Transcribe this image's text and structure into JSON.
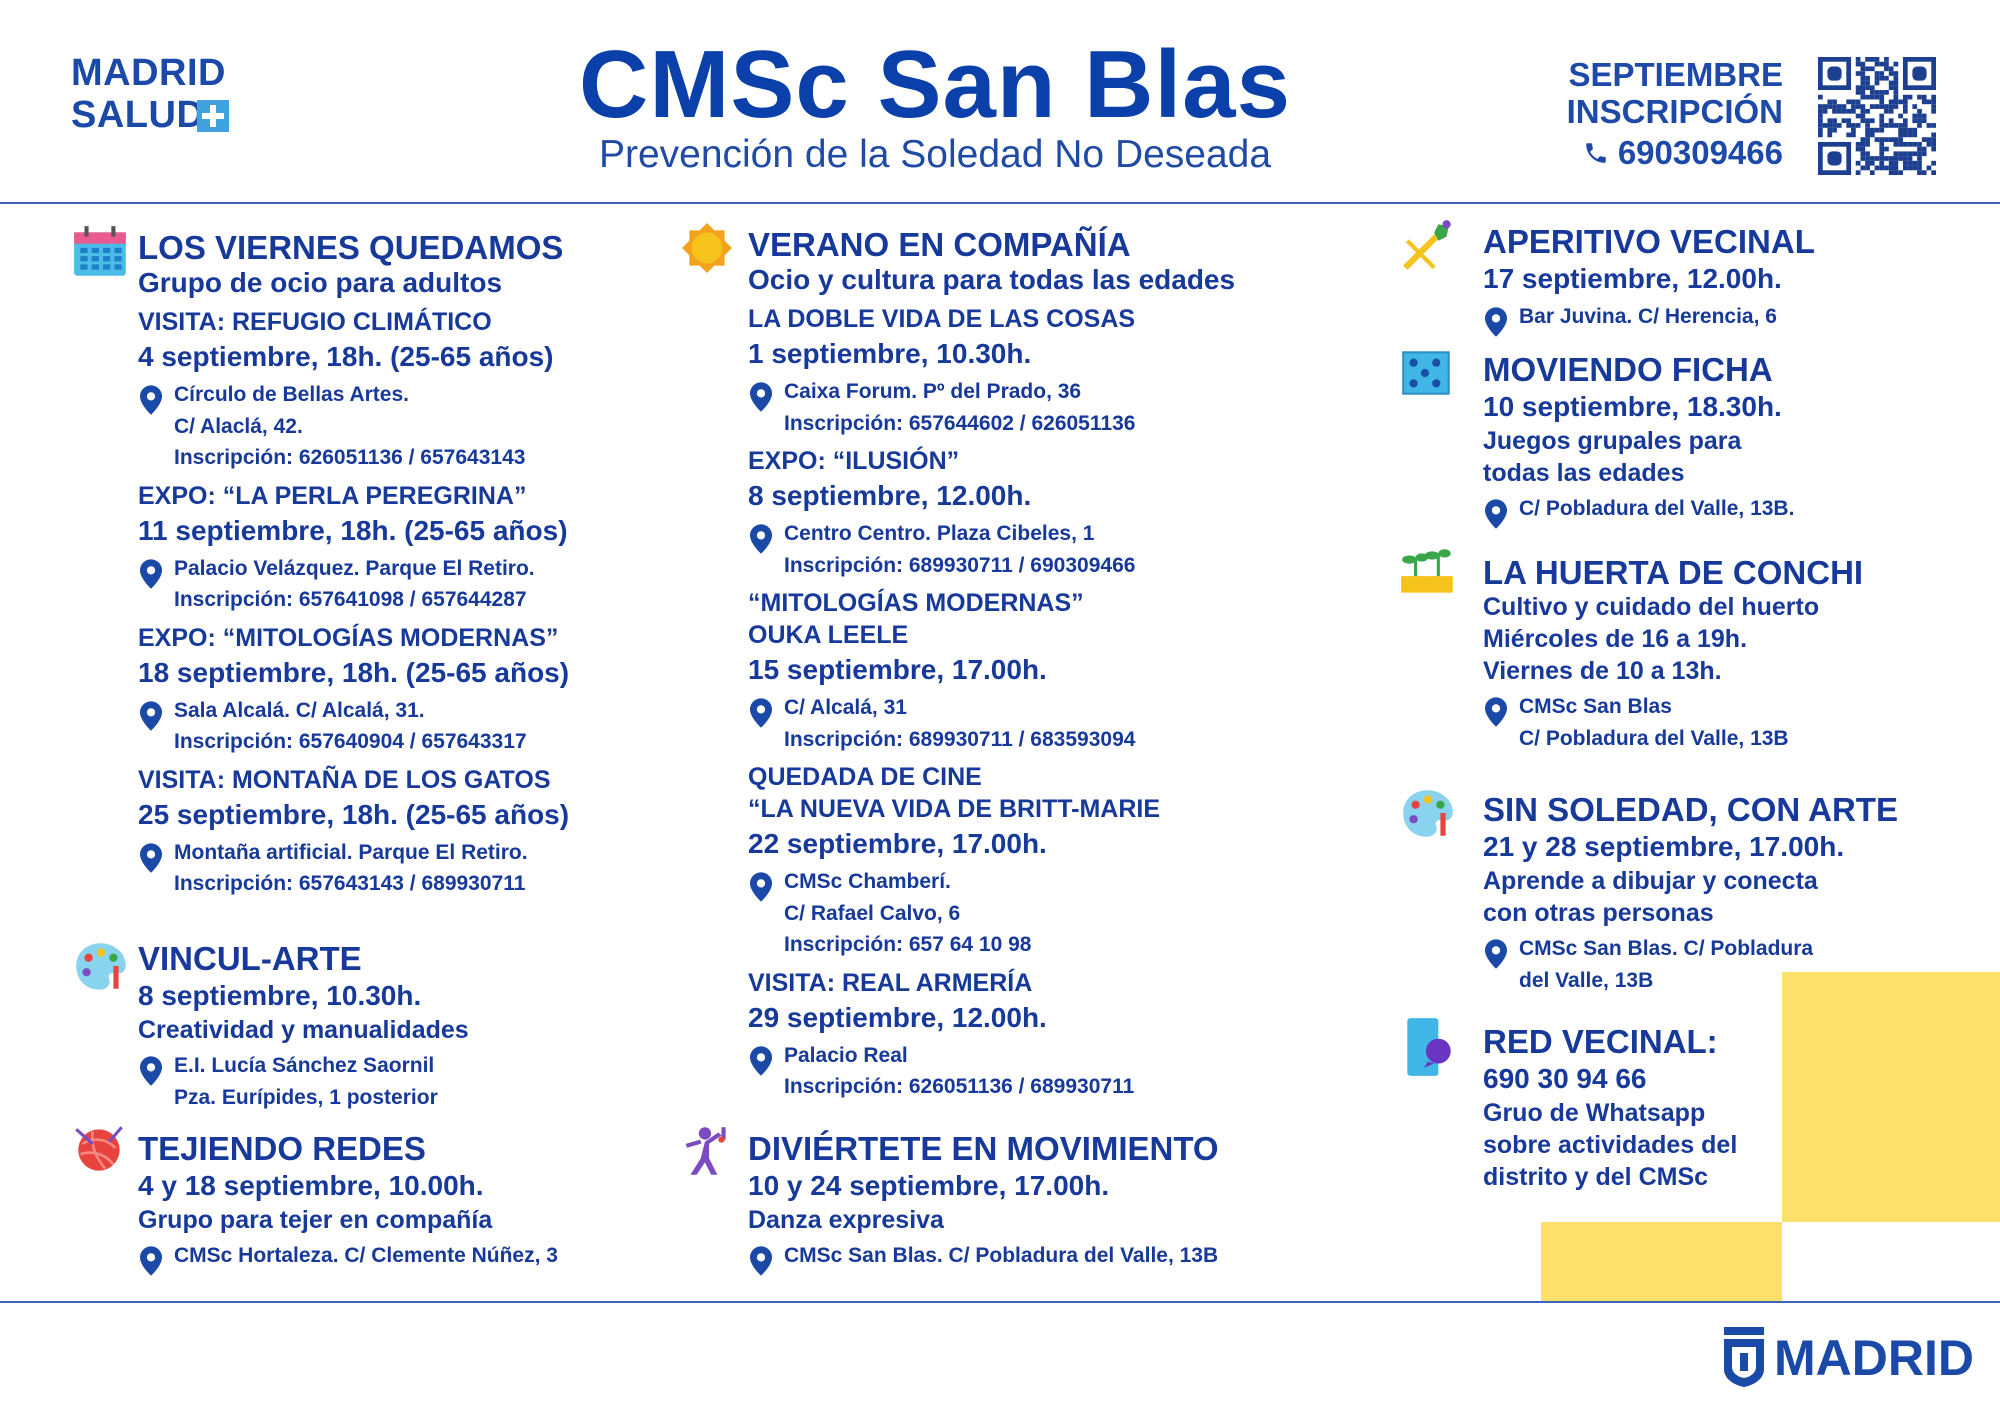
{
  "header": {
    "logo": [
      "MADRID",
      "SALUD"
    ],
    "title": "CMSc San Blas",
    "subtitle": "Prevención de la Soledad No Deseada",
    "month": "SEPTIEMBRE",
    "registration": "INSCRIPCIÓN",
    "phone": "690309466"
  },
  "columns": [
    {
      "sections": [
        {
          "title": "LOS VIERNES QUEDAMOS",
          "subtitle": "Grupo de ocio para adultos",
          "events": [
            {
              "label": [
                "VISITA: REFUGIO CLIMÁTICO"
              ],
              "date": "4 septiembre, 18h. (25-65 años)",
              "place": [
                "Círculo de Bellas Artes.",
                "C/ Alaclá, 42.",
                "Inscripción: 626051136 / 657643143"
              ]
            },
            {
              "label": [
                "EXPO: “LA PERLA PEREGRINA”"
              ],
              "date": "11 septiembre, 18h. (25-65 años)",
              "place": [
                "Palacio Velázquez.  Parque El Retiro.",
                "Inscripción: 657641098 / 657644287"
              ]
            },
            {
              "label": [
                "EXPO: “MITOLOGÍAS MODERNAS”"
              ],
              "date": "18 septiembre, 18h. (25-65 años)",
              "place": [
                "Sala Alcalá. C/ Alcalá, 31.",
                "Inscripción: 657640904 / 657643317"
              ]
            },
            {
              "label": [
                "VISITA: MONTAÑA DE LOS GATOS"
              ],
              "date": "25 septiembre, 18h. (25-65 años)",
              "place": [
                "Montaña artificial. Parque El Retiro.",
                "Inscripción:  657643143 / 689930711"
              ]
            }
          ]
        },
        {
          "title": "VINCUL-ARTE",
          "date": "8 septiembre, 10.30h.",
          "description": [
            "Creatividad y manualidades"
          ],
          "place": [
            "E.I. Lucía Sánchez Saornil",
            "Pza. Eurípides, 1 posterior"
          ]
        },
        {
          "title": "TEJIENDO REDES",
          "date": "4 y 18 septiembre, 10.00h.",
          "description": [
            "Grupo para tejer en compañía"
          ],
          "place": [
            "CMSc Hortaleza. C/ Clemente Núñez, 3"
          ]
        }
      ]
    },
    {
      "sections": [
        {
          "title": "VERANO EN COMPAÑÍA",
          "subtitle": "Ocio y cultura para todas las edades",
          "events": [
            {
              "label": [
                "LA DOBLE VIDA DE LAS COSAS"
              ],
              "date": "1 septiembre, 10.30h.",
              "place": [
                "Caixa Forum. Pº del Prado, 36",
                "Inscripción: 657644602 / 626051136"
              ]
            },
            {
              "label": [
                "EXPO: “ILUSIÓN”"
              ],
              "date": "8 septiembre, 12.00h.",
              "place": [
                "Centro Centro. Plaza Cibeles, 1",
                "Inscripción: 689930711 / 690309466"
              ]
            },
            {
              "label": [
                "“MITOLOGÍAS MODERNAS”",
                "OUKA LEELE"
              ],
              "date": "15 septiembre, 17.00h.",
              "place": [
                "C/ Alcalá, 31",
                "Inscripción: 689930711 / 683593094"
              ]
            },
            {
              "label": [
                "QUEDADA DE CINE",
                "“LA NUEVA VIDA DE BRITT-MARIE"
              ],
              "date": "22 septiembre, 17.00h.",
              "place": [
                "CMSc Chamberí.",
                "C/ Rafael Calvo, 6",
                "Inscripción: 657 64 10 98"
              ]
            },
            {
              "label": [
                "VISITA: REAL ARMERÍA"
              ],
              "date": "29 septiembre, 12.00h.",
              "place": [
                "Palacio Real",
                "Inscripción: 626051136 / 689930711"
              ]
            }
          ]
        },
        {
          "title": "DIVIÉRTETE EN MOVIMIENTO",
          "date": "10 y 24 septiembre, 17.00h.",
          "description": [
            "Danza expresiva"
          ],
          "place": [
            "CMSc San Blas. C/ Pobladura del Valle, 13B"
          ]
        }
      ]
    },
    {
      "sections": [
        {
          "title": "APERITIVO VECINAL",
          "date": "17 septiembre, 12.00h.",
          "place": [
            "Bar Juvina. C/ Herencia, 6"
          ]
        },
        {
          "title": "MOVIENDO FICHA",
          "date": "10 septiembre, 18.30h.",
          "description": [
            "Juegos grupales para",
            "todas las edades"
          ],
          "place": [
            "C/ Pobladura del Valle, 13B."
          ]
        },
        {
          "title": "LA HUERTA DE CONCHI",
          "description": [
            "Cultivo y cuidado del huerto",
            "Miércoles de 16 a 19h.",
            "Viernes de 10 a 13h."
          ],
          "place": [
            "CMSc San Blas",
            "C/ Pobladura del Valle, 13B"
          ]
        },
        {
          "title": "SIN SOLEDAD, CON ARTE",
          "date": "21 y 28 septiembre, 17.00h.",
          "description": [
            "Aprende a dibujar y conecta",
            "con otras personas"
          ],
          "place": [
            "CMSc San Blas. C/ Pobladura",
            "del Valle, 13B"
          ]
        },
        {
          "title": "RED VECINAL:",
          "date": "690 30 94 66",
          "description": [
            "Gruo de Whatsapp",
            "sobre actividades del",
            "distrito y del CMSc"
          ]
        }
      ]
    }
  ],
  "footer": {
    "logo": "MADRID"
  }
}
